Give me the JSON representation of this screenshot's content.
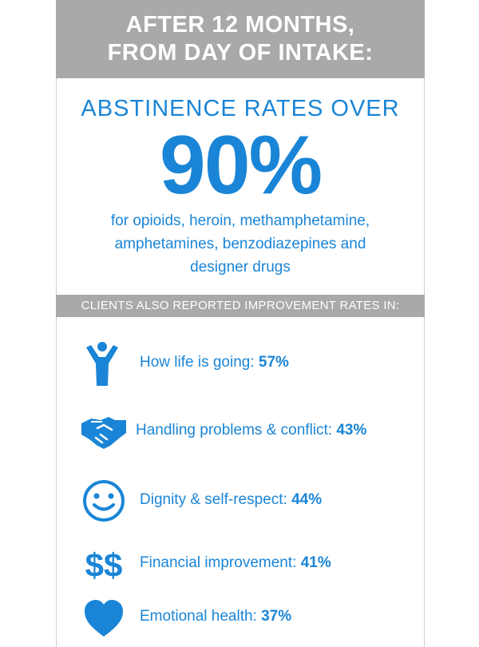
{
  "header": {
    "line1": "AFTER 12 MONTHS,",
    "line2": "FROM DAY OF INTAKE:"
  },
  "abstinence": {
    "lead": "ABSTINENCE RATES OVER",
    "value": "90%",
    "detail_line1": "for opioids, heroin, methamphetamine,",
    "detail_line2": "amphetamines, benzodiazepines and",
    "detail_line3": "designer drugs"
  },
  "band": "CLIENTS ALSO REPORTED IMPROVEMENT RATES IN:",
  "improvements": [
    {
      "icon": "person-raised-arms-icon",
      "label": "How life is going:",
      "value": "57%"
    },
    {
      "icon": "handshake-icon",
      "label": "Handling problems & conflict:",
      "value": "43%"
    },
    {
      "icon": "smiley-face-icon",
      "label": "Dignity & self-respect:",
      "value": "44%"
    },
    {
      "icon": "dollar-signs-icon",
      "label": "Financial improvement:",
      "value": "41%"
    },
    {
      "icon": "heart-icon",
      "label": "Emotional health:",
      "value": "37%"
    }
  ],
  "colors": {
    "accent": "#1a85d6",
    "header_bg": "#a9a9a9",
    "text_light": "#ffffff"
  }
}
